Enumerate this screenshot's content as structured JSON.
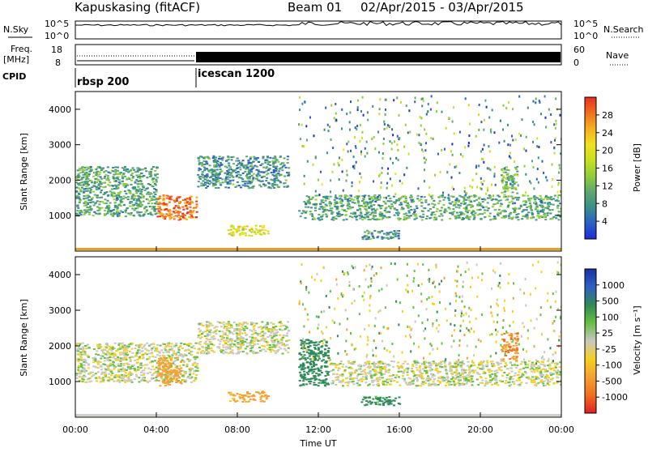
{
  "header": {
    "station": "Kapuskasing (fitACF)",
    "beam": "Beam 01",
    "date_range": "02/Apr/2015 - 03/Apr/2015"
  },
  "top_panels": {
    "nsky_label": "N.Sky",
    "nsky_ticks": [
      "10^5",
      "10^0"
    ],
    "nsearch_label": "N.Search",
    "freq_label": "Freq.",
    "freq_unit": "[MHz]",
    "freq_ticks": [
      "18",
      "8"
    ],
    "nave_ticks": [
      "60",
      "0"
    ],
    "nave_label": "Nave",
    "cpid_label": "CPID",
    "cpid_entries": [
      {
        "name": "rbsp 200",
        "start_hour": 0
      },
      {
        "name": "icescan 1200",
        "start_hour": 6
      }
    ]
  },
  "chart_data": [
    {
      "type": "heatmap",
      "ylabel": "Slant Range [km]",
      "yticks": [
        1000,
        2000,
        3000,
        4000
      ],
      "ylim": [
        0,
        4500
      ],
      "xlim": [
        0,
        24
      ],
      "colorbar": {
        "label": "Power [dB]",
        "ticks": [
          "4",
          "8",
          "12",
          "16",
          "20",
          "24",
          "28"
        ],
        "colors": [
          "#1e2dd2",
          "#2a5fc8",
          "#3a8f8a",
          "#5da86e",
          "#8fcf3a",
          "#c8e020",
          "#f0e020",
          "#f5b020",
          "#f07020",
          "#e83020"
        ]
      },
      "features": [
        {
          "hours": [
            0.0,
            4.0
          ],
          "range_km": [
            1000,
            2400
          ],
          "level_db": 10
        },
        {
          "hours": [
            4.0,
            6.0
          ],
          "range_km": [
            900,
            1600
          ],
          "level_db": 28
        },
        {
          "hours": [
            6.0,
            10.5
          ],
          "range_km": [
            1800,
            2700
          ],
          "level_db": 8
        },
        {
          "hours": [
            7.5,
            9.5
          ],
          "range_km": [
            450,
            750
          ],
          "level_db": 20
        },
        {
          "hours": [
            11.0,
            24.0
          ],
          "range_km": [
            900,
            1600
          ],
          "level_db": 10
        },
        {
          "hours": [
            14.0,
            16.0
          ],
          "range_km": [
            350,
            600
          ],
          "level_db": 8
        },
        {
          "hours": [
            21.0,
            21.8
          ],
          "range_km": [
            1600,
            2400
          ],
          "level_db": 12
        }
      ]
    },
    {
      "type": "heatmap",
      "xlabel": "Time UT",
      "ylabel": "Slant Range [km]",
      "xticks": [
        "00:00",
        "04:00",
        "08:00",
        "12:00",
        "16:00",
        "20:00",
        "00:00"
      ],
      "yticks": [
        1000,
        2000,
        3000,
        4000
      ],
      "ylim": [
        0,
        4500
      ],
      "xlim": [
        0,
        24
      ],
      "colorbar": {
        "label": "Velocity [m s⁻¹]",
        "ticks": [
          "1000",
          "500",
          "100",
          "25",
          "-25",
          "-100",
          "-500",
          "-1000"
        ],
        "colors": [
          "#1a2fa8",
          "#2f60c0",
          "#2f8a58",
          "#66c040",
          "#c8c8c0",
          "#f5d020",
          "#f5a030",
          "#f07020",
          "#e02020"
        ]
      },
      "features": [
        {
          "hours": [
            0.0,
            6.0
          ],
          "range_km": [
            1000,
            2100
          ],
          "velocity": 0
        },
        {
          "hours": [
            4.0,
            5.2
          ],
          "range_km": [
            900,
            1700
          ],
          "velocity": -300
        },
        {
          "hours": [
            6.0,
            10.5
          ],
          "range_km": [
            1800,
            2700
          ],
          "velocity": 0
        },
        {
          "hours": [
            7.5,
            9.5
          ],
          "range_km": [
            450,
            750
          ],
          "velocity": -150
        },
        {
          "hours": [
            11.0,
            12.5
          ],
          "range_km": [
            900,
            2200
          ],
          "velocity": 200
        },
        {
          "hours": [
            12.5,
            24.0
          ],
          "range_km": [
            900,
            1600
          ],
          "velocity": 0
        },
        {
          "hours": [
            14.0,
            16.0
          ],
          "range_km": [
            350,
            600
          ],
          "velocity": 150
        },
        {
          "hours": [
            21.0,
            21.8
          ],
          "range_km": [
            1600,
            2400
          ],
          "velocity": -500
        }
      ]
    }
  ]
}
